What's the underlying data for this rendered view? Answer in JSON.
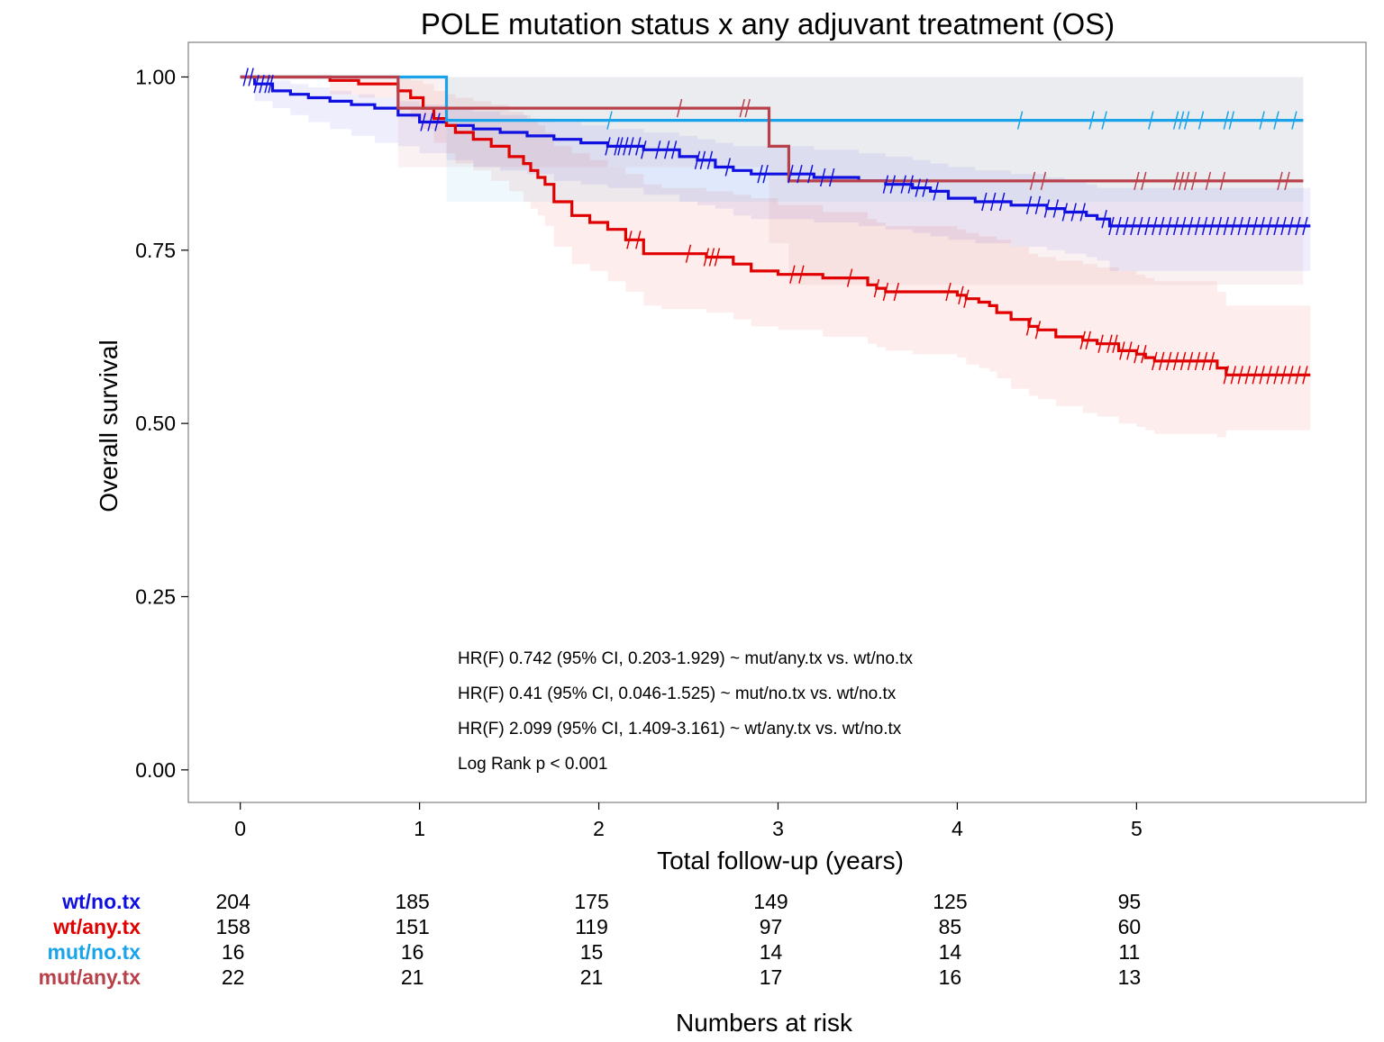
{
  "chart_data": {
    "type": "line",
    "subtype": "kaplan-meier",
    "title": "POLE mutation status x any adjuvant treatment (OS)",
    "xlabel": "Total follow-up (years)",
    "ylabel": "Overall survival",
    "xlim": [
      -0.29,
      6.28
    ],
    "ylim": [
      -0.047,
      1.05
    ],
    "x_ticks": [
      0,
      1,
      2,
      3,
      4,
      5
    ],
    "y_ticks": [
      0.0,
      0.25,
      0.5,
      0.75,
      1.0
    ],
    "y_tick_labels": [
      "0.00",
      "0.25",
      "0.50",
      "0.75",
      "1.00"
    ],
    "grid": false,
    "legend": "none",
    "annotations": [
      "HR(F) 0.742 (95% CI, 0.203-1.929) ~ mut/any.tx vs. wt/no.tx",
      "HR(F) 0.41 (95% CI, 0.046-1.525) ~ mut/no.tx vs. wt/no.tx",
      "HR(F) 2.099 (95% CI, 1.409-3.161) ~ wt/any.tx vs. wt/no.tx",
      "Log Rank p < 0.001"
    ],
    "series": [
      {
        "name": "wt/no.tx",
        "color": "#1010e0",
        "x": [
          0,
          0.08,
          0.18,
          0.28,
          0.38,
          0.5,
          0.62,
          0.75,
          0.88,
          1.0,
          1.15,
          1.3,
          1.45,
          1.6,
          1.75,
          1.9,
          2.05,
          2.25,
          2.45,
          2.55,
          2.65,
          2.75,
          2.85,
          3.0,
          3.2,
          3.45,
          3.6,
          3.75,
          3.85,
          3.95,
          4.1,
          4.3,
          4.5,
          4.6,
          4.72,
          4.78,
          4.85,
          5.97
        ],
        "y": [
          1.0,
          0.99,
          0.98,
          0.975,
          0.97,
          0.965,
          0.96,
          0.955,
          0.945,
          0.935,
          0.93,
          0.925,
          0.92,
          0.915,
          0.91,
          0.905,
          0.9,
          0.895,
          0.885,
          0.88,
          0.87,
          0.865,
          0.86,
          0.86,
          0.855,
          0.85,
          0.845,
          0.84,
          0.835,
          0.825,
          0.82,
          0.815,
          0.81,
          0.805,
          0.8,
          0.795,
          0.785,
          0.785
        ],
        "ci_upper": [
          1.0,
          1.0,
          0.995,
          0.99,
          0.985,
          0.98,
          0.975,
          0.97,
          0.965,
          0.96,
          0.955,
          0.95,
          0.945,
          0.94,
          0.935,
          0.93,
          0.925,
          0.92,
          0.915,
          0.91,
          0.905,
          0.9,
          0.9,
          0.9,
          0.895,
          0.89,
          0.885,
          0.88,
          0.875,
          0.87,
          0.865,
          0.86,
          0.855,
          0.85,
          0.845,
          0.84,
          0.84,
          0.84
        ],
        "ci_lower": [
          1.0,
          0.965,
          0.955,
          0.945,
          0.935,
          0.925,
          0.915,
          0.905,
          0.9,
          0.89,
          0.88,
          0.87,
          0.865,
          0.86,
          0.85,
          0.845,
          0.84,
          0.83,
          0.82,
          0.815,
          0.81,
          0.8,
          0.795,
          0.795,
          0.79,
          0.785,
          0.78,
          0.775,
          0.77,
          0.765,
          0.76,
          0.755,
          0.75,
          0.745,
          0.74,
          0.735,
          0.72,
          0.72
        ],
        "censor_x": [
          0.03,
          0.06,
          0.09,
          0.12,
          0.15,
          0.17,
          1.02,
          1.06,
          1.1,
          2.05,
          2.1,
          2.12,
          2.15,
          2.18,
          2.22,
          2.25,
          2.33,
          2.38,
          2.42,
          2.55,
          2.58,
          2.62,
          2.72,
          2.9,
          2.93,
          3.07,
          3.12,
          3.18,
          3.25,
          3.3,
          3.6,
          3.64,
          3.7,
          3.74,
          3.78,
          3.82,
          3.88,
          4.15,
          4.2,
          4.25,
          4.4,
          4.45,
          4.5,
          4.55,
          4.6,
          4.65,
          4.7,
          4.82,
          4.86,
          4.9,
          4.94,
          4.98,
          5.02,
          5.06,
          5.1,
          5.14,
          5.18,
          5.22,
          5.26,
          5.3,
          5.34,
          5.38,
          5.42,
          5.46,
          5.5,
          5.54,
          5.58,
          5.62,
          5.66,
          5.7,
          5.74,
          5.78,
          5.82,
          5.86,
          5.9,
          5.94
        ]
      },
      {
        "name": "wt/any.tx",
        "color": "#e00000",
        "x": [
          0,
          0.5,
          0.66,
          0.88,
          0.95,
          1.02,
          1.08,
          1.15,
          1.2,
          1.3,
          1.4,
          1.5,
          1.58,
          1.62,
          1.66,
          1.7,
          1.75,
          1.85,
          1.95,
          2.05,
          2.15,
          2.25,
          2.35,
          2.6,
          2.75,
          2.85,
          3.0,
          3.25,
          3.5,
          3.55,
          3.6,
          3.75,
          3.9,
          4.0,
          4.05,
          4.12,
          4.18,
          4.22,
          4.3,
          4.4,
          4.45,
          4.55,
          4.7,
          4.78,
          4.9,
          5.0,
          5.05,
          5.1,
          5.45,
          5.5,
          5.97
        ],
        "y": [
          1.0,
          0.995,
          0.99,
          0.98,
          0.97,
          0.955,
          0.94,
          0.93,
          0.92,
          0.91,
          0.9,
          0.885,
          0.875,
          0.865,
          0.855,
          0.845,
          0.82,
          0.8,
          0.79,
          0.78,
          0.765,
          0.745,
          0.745,
          0.74,
          0.73,
          0.72,
          0.715,
          0.71,
          0.7,
          0.695,
          0.69,
          0.69,
          0.69,
          0.685,
          0.68,
          0.675,
          0.67,
          0.66,
          0.65,
          0.64,
          0.635,
          0.625,
          0.62,
          0.615,
          0.605,
          0.6,
          0.595,
          0.59,
          0.58,
          0.57,
          0.57
        ],
        "ci_upper": [
          1.0,
          1.0,
          1.0,
          1.0,
          0.995,
          0.99,
          0.98,
          0.975,
          0.97,
          0.965,
          0.96,
          0.95,
          0.945,
          0.94,
          0.93,
          0.92,
          0.9,
          0.89,
          0.88,
          0.87,
          0.86,
          0.845,
          0.84,
          0.835,
          0.83,
          0.825,
          0.815,
          0.805,
          0.795,
          0.79,
          0.785,
          0.785,
          0.785,
          0.78,
          0.775,
          0.77,
          0.77,
          0.765,
          0.755,
          0.745,
          0.74,
          0.735,
          0.73,
          0.725,
          0.72,
          0.715,
          0.71,
          0.705,
          0.69,
          0.67,
          0.67
        ],
        "ci_lower": [
          1.0,
          0.975,
          0.97,
          0.955,
          0.94,
          0.925,
          0.905,
          0.89,
          0.875,
          0.865,
          0.85,
          0.835,
          0.82,
          0.81,
          0.8,
          0.785,
          0.755,
          0.73,
          0.72,
          0.705,
          0.69,
          0.67,
          0.665,
          0.66,
          0.65,
          0.64,
          0.635,
          0.625,
          0.615,
          0.61,
          0.605,
          0.6,
          0.6,
          0.595,
          0.585,
          0.58,
          0.575,
          0.565,
          0.55,
          0.54,
          0.535,
          0.525,
          0.515,
          0.51,
          0.5,
          0.495,
          0.49,
          0.485,
          0.48,
          0.49,
          0.49
        ],
        "censor_x": [
          2.17,
          2.22,
          2.5,
          2.6,
          2.63,
          2.66,
          3.08,
          3.13,
          3.4,
          3.55,
          3.6,
          3.66,
          3.95,
          4.02,
          4.05,
          4.4,
          4.45,
          4.7,
          4.73,
          4.8,
          4.85,
          4.88,
          4.92,
          4.96,
          5.0,
          5.04,
          5.1,
          5.14,
          5.18,
          5.22,
          5.26,
          5.3,
          5.34,
          5.38,
          5.42,
          5.5,
          5.54,
          5.58,
          5.62,
          5.66,
          5.7,
          5.74,
          5.78,
          5.82,
          5.86,
          5.9,
          5.94
        ]
      },
      {
        "name": "mut/no.tx",
        "color": "#1aa3e8",
        "x": [
          0,
          1.15,
          5.93
        ],
        "y": [
          1.0,
          0.9375,
          0.9375
        ],
        "ci_upper": [
          1.0,
          1.0,
          1.0
        ],
        "ci_lower": [
          1.0,
          0.82,
          0.82
        ],
        "censor_x": [
          2.06,
          4.35,
          4.75,
          4.82,
          5.08,
          5.22,
          5.25,
          5.28,
          5.36,
          5.5,
          5.53,
          5.7,
          5.78,
          5.88
        ]
      },
      {
        "name": "mut/any.tx",
        "color": "#b8404a",
        "x": [
          0,
          0.88,
          2.95,
          3.06,
          5.93
        ],
        "y": [
          1.0,
          0.955,
          0.9,
          0.85,
          0.85
        ],
        "ci_upper": [
          1.0,
          1.0,
          1.0,
          1.0,
          1.0
        ],
        "ci_lower": [
          1.0,
          0.87,
          0.76,
          0.7,
          0.7
        ],
        "censor_x": [
          2.45,
          2.8,
          2.83,
          4.42,
          4.48,
          5.0,
          5.04,
          5.22,
          5.25,
          5.28,
          5.32,
          5.4,
          5.48,
          5.8,
          5.84
        ]
      }
    ],
    "risk_table": {
      "title": "Numbers at risk",
      "timepoints": [
        0,
        1,
        2,
        3,
        4,
        5
      ],
      "rows": [
        {
          "label": "wt/no.tx",
          "color": "#1010e0",
          "values": [
            "204",
            "185",
            "175",
            "149",
            "125",
            "95"
          ]
        },
        {
          "label": "wt/any.tx",
          "color": "#e00000",
          "values": [
            "158",
            "151",
            "119",
            "97",
            "85",
            "60"
          ]
        },
        {
          "label": "mut/no.tx",
          "color": "#1aa3e8",
          "values": [
            "16",
            "16",
            "15",
            "14",
            "14",
            "11"
          ]
        },
        {
          "label": "mut/any.tx",
          "color": "#b8404a",
          "values": [
            "22",
            "21",
            "21",
            "17",
            "16",
            "13"
          ]
        }
      ]
    }
  }
}
